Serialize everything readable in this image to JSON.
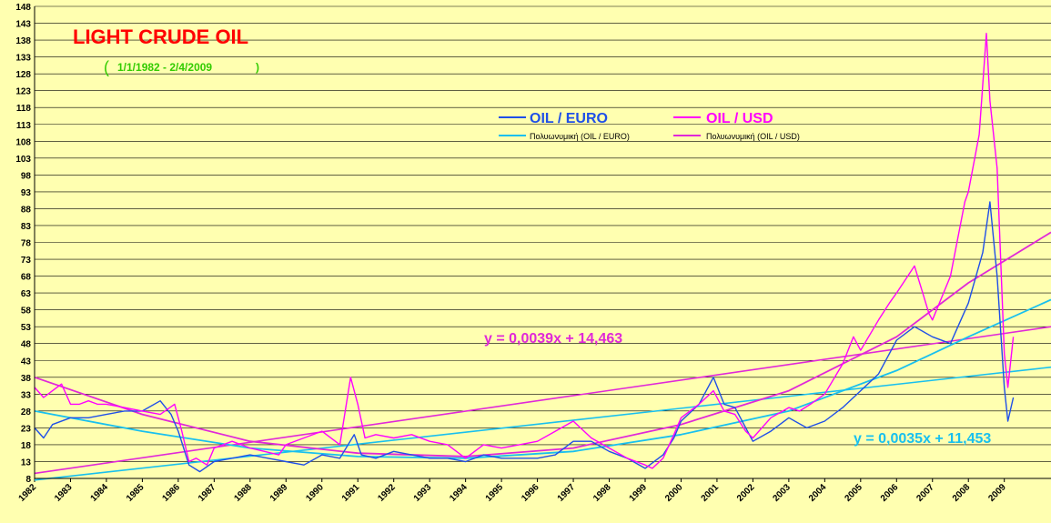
{
  "chart_data": {
    "type": "line",
    "title": "LIGHT CRUDE OIL",
    "subtitle": "1/1/1982 - 2/4/2009",
    "subtitle_open": "(",
    "subtitle_close": ")",
    "ylim": [
      8,
      148
    ],
    "yticks": [
      8,
      13,
      18,
      23,
      28,
      33,
      38,
      43,
      48,
      53,
      58,
      63,
      68,
      73,
      78,
      83,
      88,
      93,
      98,
      103,
      108,
      113,
      118,
      123,
      128,
      133,
      138,
      143,
      148
    ],
    "xlim": [
      1982,
      2010.3
    ],
    "xticks": [
      "1982",
      "1983",
      "1984",
      "1985",
      "1986",
      "1987",
      "1988",
      "1989",
      "1990",
      "1991",
      "1992",
      "1993",
      "1994",
      "1995",
      "1996",
      "1997",
      "1998",
      "1999",
      "2000",
      "2001",
      "2002",
      "2003",
      "2004",
      "2005",
      "2006",
      "2007",
      "2008",
      "2009"
    ],
    "grid": true,
    "legend_position": "top-center",
    "colors": {
      "euro": "#1f4fe8",
      "usd": "#ff00ff",
      "euro_trend": "#19c0ee",
      "usd_trend": "#e028d8"
    },
    "series": [
      {
        "name": "OIL / USD",
        "x": [
          1982.0,
          1982.25,
          1982.5,
          1982.75,
          1983.0,
          1983.25,
          1983.5,
          1983.75,
          1984.0,
          1984.5,
          1985.0,
          1985.5,
          1985.9,
          1986.1,
          1986.3,
          1986.5,
          1986.8,
          1987.0,
          1987.5,
          1988.0,
          1988.4,
          1988.8,
          1989.0,
          1989.5,
          1990.0,
          1990.5,
          1990.8,
          1991.0,
          1991.2,
          1991.5,
          1992.0,
          1992.5,
          1993.0,
          1993.5,
          1994.0,
          1994.5,
          1995.0,
          1995.5,
          1996.0,
          1996.5,
          1997.0,
          1997.5,
          1998.0,
          1998.5,
          1999.0,
          1999.2,
          1999.5,
          1999.8,
          2000.0,
          2000.5,
          2000.9,
          2001.2,
          2001.5,
          2001.8,
          2002.0,
          2002.5,
          2003.0,
          2003.3,
          2003.6,
          2004.0,
          2004.5,
          2004.8,
          2005.0,
          2005.5,
          2005.8,
          2006.0,
          2006.5,
          2006.9,
          2007.0,
          2007.5,
          2007.9,
          2008.0,
          2008.3,
          2008.5,
          2008.6,
          2008.8,
          2009.0,
          2009.1,
          2009.25
        ],
        "values": [
          35,
          32,
          34,
          36,
          30,
          30,
          31,
          30,
          30,
          29,
          28,
          27,
          30,
          22,
          13,
          14,
          12,
          17,
          19,
          17,
          16,
          15,
          18,
          20,
          22,
          18,
          38,
          30,
          20,
          21,
          20,
          21,
          19,
          18,
          14,
          18,
          17,
          18,
          19,
          22,
          25,
          20,
          17,
          14,
          12,
          11,
          14,
          21,
          26,
          30,
          34,
          28,
          27,
          22,
          20,
          26,
          29,
          28,
          30,
          33,
          42,
          50,
          46,
          55,
          60,
          63,
          71,
          57,
          55,
          68,
          90,
          93,
          110,
          140,
          120,
          100,
          45,
          35,
          50
        ],
        "color": "#ff00ff"
      },
      {
        "name": "OIL / EURO",
        "x": [
          1982.0,
          1982.25,
          1982.5,
          1983.0,
          1983.5,
          1984.0,
          1984.5,
          1985.0,
          1985.5,
          1985.8,
          1986.0,
          1986.3,
          1986.6,
          1987.0,
          1987.5,
          1988.0,
          1988.5,
          1989.0,
          1989.5,
          1990.0,
          1990.5,
          1990.9,
          1991.1,
          1991.5,
          1992.0,
          1992.5,
          1993.0,
          1993.5,
          1994.0,
          1994.5,
          1995.0,
          1995.5,
          1996.0,
          1996.5,
          1997.0,
          1997.5,
          1998.0,
          1998.5,
          1999.0,
          1999.5,
          1999.8,
          2000.0,
          2000.5,
          2000.9,
          2001.2,
          2001.5,
          2002.0,
          2002.5,
          2003.0,
          2003.5,
          2004.0,
          2004.5,
          2005.0,
          2005.5,
          2006.0,
          2006.5,
          2007.0,
          2007.5,
          2008.0,
          2008.4,
          2008.6,
          2008.8,
          2009.0,
          2009.1,
          2009.25
        ],
        "values": [
          23,
          20,
          24,
          26,
          26,
          27,
          28,
          28,
          31,
          27,
          22,
          12,
          10,
          13,
          14,
          15,
          14,
          13,
          12,
          15,
          14,
          21,
          15,
          14,
          16,
          15,
          14,
          14,
          13,
          15,
          14,
          14,
          14,
          15,
          19,
          19,
          16,
          14,
          11,
          15,
          20,
          25,
          30,
          38,
          30,
          29,
          19,
          22,
          26,
          23,
          25,
          29,
          34,
          39,
          49,
          53,
          50,
          48,
          60,
          75,
          90,
          68,
          35,
          25,
          32
        ],
        "color": "#1f4fe8"
      },
      {
        "name": "Πολυωνυμική (OIL / USD)",
        "x": [
          1982,
          1985,
          1988,
          1991,
          1994,
          1997,
          2000,
          2003,
          2006,
          2008,
          2010.3
        ],
        "values": [
          38,
          27,
          19,
          15.5,
          14.5,
          17,
          24,
          34,
          50,
          66,
          81
        ],
        "color": "#e028d8"
      },
      {
        "name": "Πολυωνυμική (OIL / EURO)",
        "x": [
          1982,
          1985,
          1988,
          1991,
          1994,
          1997,
          2000,
          2003,
          2006,
          2008,
          2010.3
        ],
        "values": [
          28,
          22,
          17,
          14.5,
          14,
          16,
          21,
          28,
          40,
          50,
          61
        ],
        "color": "#19c0ee"
      }
    ],
    "trendlines": [
      {
        "equation": "y = 0,0039x + 14,463",
        "color": "#e028d8",
        "x": [
          1982,
          2010.3
        ],
        "values": [
          9.5,
          53
        ]
      },
      {
        "equation": "y = 0,0035x + 11,453",
        "color": "#19c0ee",
        "x": [
          1982,
          2010.3
        ],
        "values": [
          7.5,
          41
        ]
      }
    ]
  }
}
